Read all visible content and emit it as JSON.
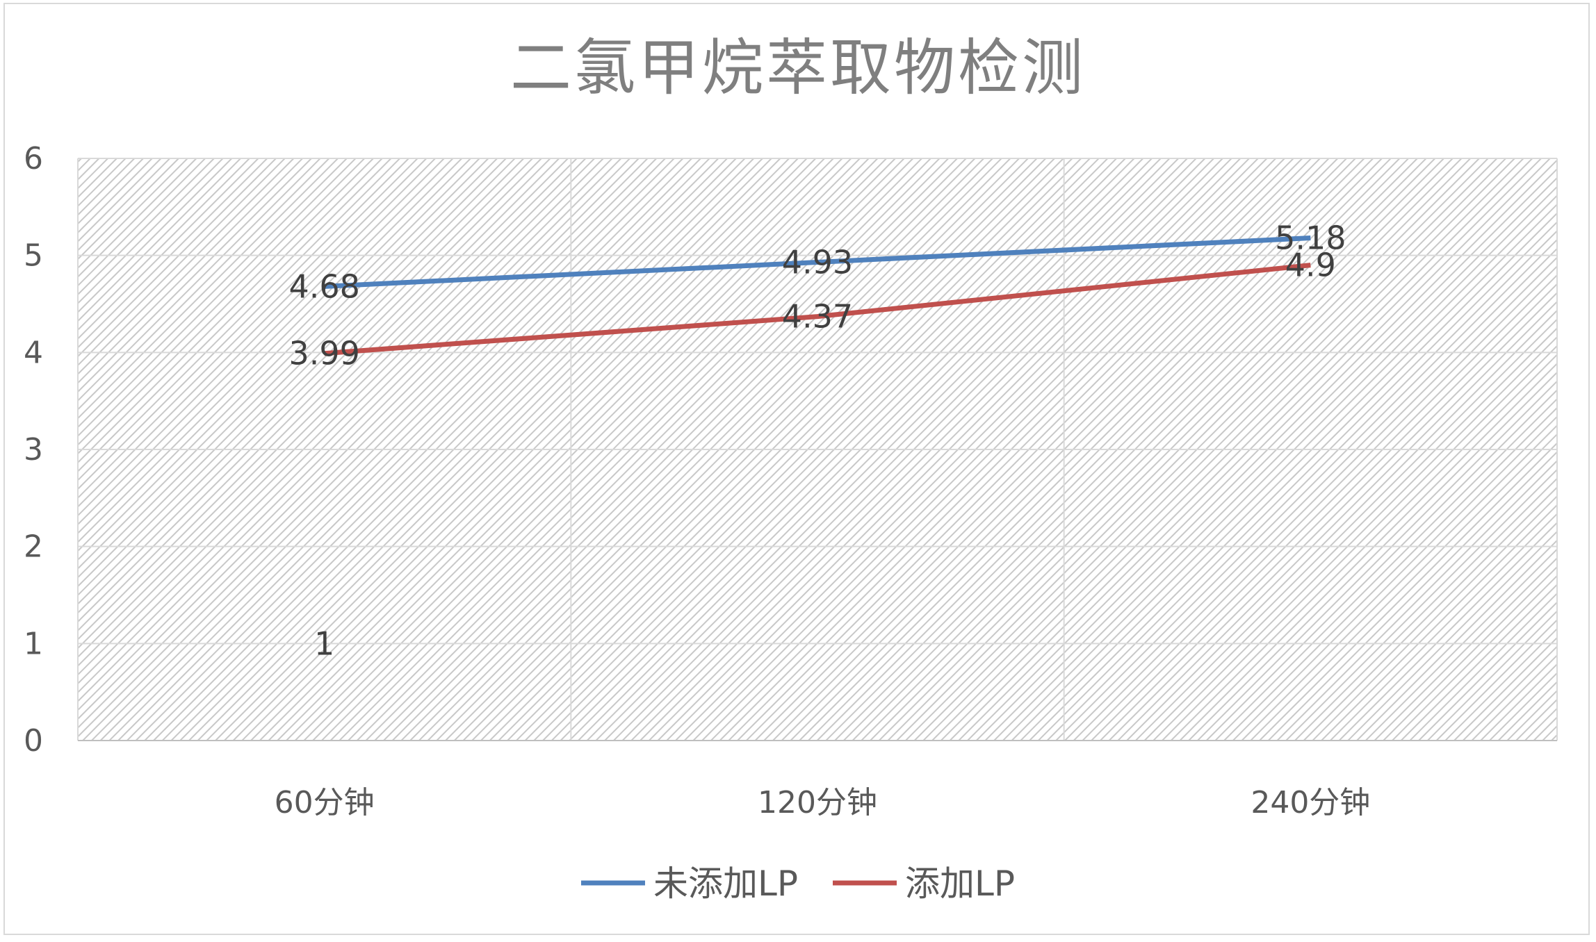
{
  "chart_data": {
    "type": "line",
    "title": "二氯甲烷萃取物检测",
    "xlabel": "",
    "ylabel": "",
    "categories": [
      "60分钟",
      "120分钟",
      "240分钟"
    ],
    "ylim": [
      0,
      6
    ],
    "yticks": [
      "0",
      "1",
      "2",
      "3",
      "4",
      "5",
      "6"
    ],
    "grid": true,
    "legend_position": "bottom",
    "series": [
      {
        "name": "未添加LP",
        "color": "#4f81bd",
        "values": [
          4.68,
          4.93,
          5.18
        ],
        "labels": [
          "4.68",
          "4.93",
          "5.18"
        ]
      },
      {
        "name": "添加LP",
        "color": "#c0504d",
        "values": [
          3.99,
          4.37,
          4.9
        ],
        "labels": [
          "3.99",
          "4.37",
          "4.9"
        ]
      }
    ],
    "annotations": [
      {
        "category": "60分钟",
        "value": 1,
        "text": "1"
      }
    ]
  }
}
